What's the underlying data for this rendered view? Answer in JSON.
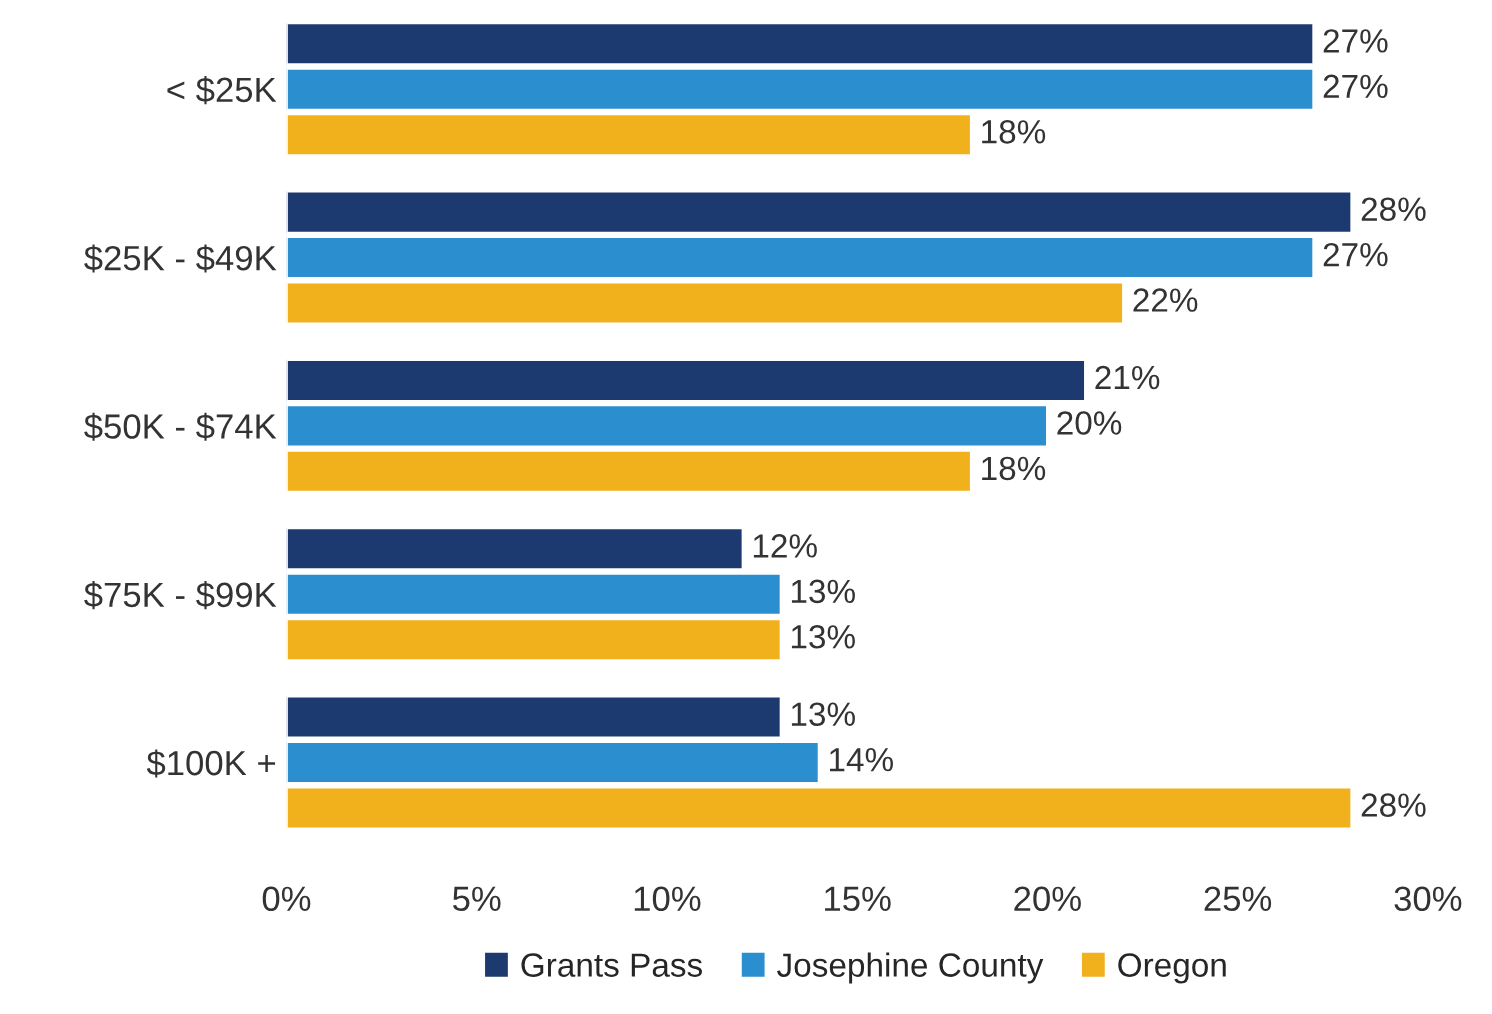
{
  "chart_data": {
    "type": "bar",
    "orientation": "horizontal",
    "categories": [
      "< $25K",
      "$25K - $49K",
      "$50K - $74K",
      "$75K - $99K",
      "$100K +"
    ],
    "series": [
      {
        "name": "Grants Pass",
        "color": "#1d3a70",
        "values": [
          27,
          28,
          21,
          12,
          13
        ],
        "value_labels": [
          "27%",
          "28%",
          "21%",
          "12%",
          "13%"
        ]
      },
      {
        "name": "Josephine County",
        "color": "#2b8fcf",
        "values": [
          27,
          27,
          20,
          13,
          14
        ],
        "value_labels": [
          "27%",
          "27%",
          "20%",
          "13%",
          "14%"
        ]
      },
      {
        "name": "Oregon",
        "color": "#f0b11c",
        "values": [
          18,
          22,
          18,
          13,
          28
        ],
        "value_labels": [
          "18%",
          "22%",
          "18%",
          "13%",
          "28%"
        ]
      }
    ],
    "xlim": [
      0,
      30
    ],
    "xticks": [
      {
        "value": 0,
        "label": "0%"
      },
      {
        "value": 5,
        "label": "5%"
      },
      {
        "value": 10,
        "label": "10%"
      },
      {
        "value": 15,
        "label": "15%"
      },
      {
        "value": 20,
        "label": "20%"
      },
      {
        "value": 25,
        "label": "25%"
      },
      {
        "value": 30,
        "label": "30%"
      }
    ],
    "grid": false,
    "legend": "bottom"
  }
}
